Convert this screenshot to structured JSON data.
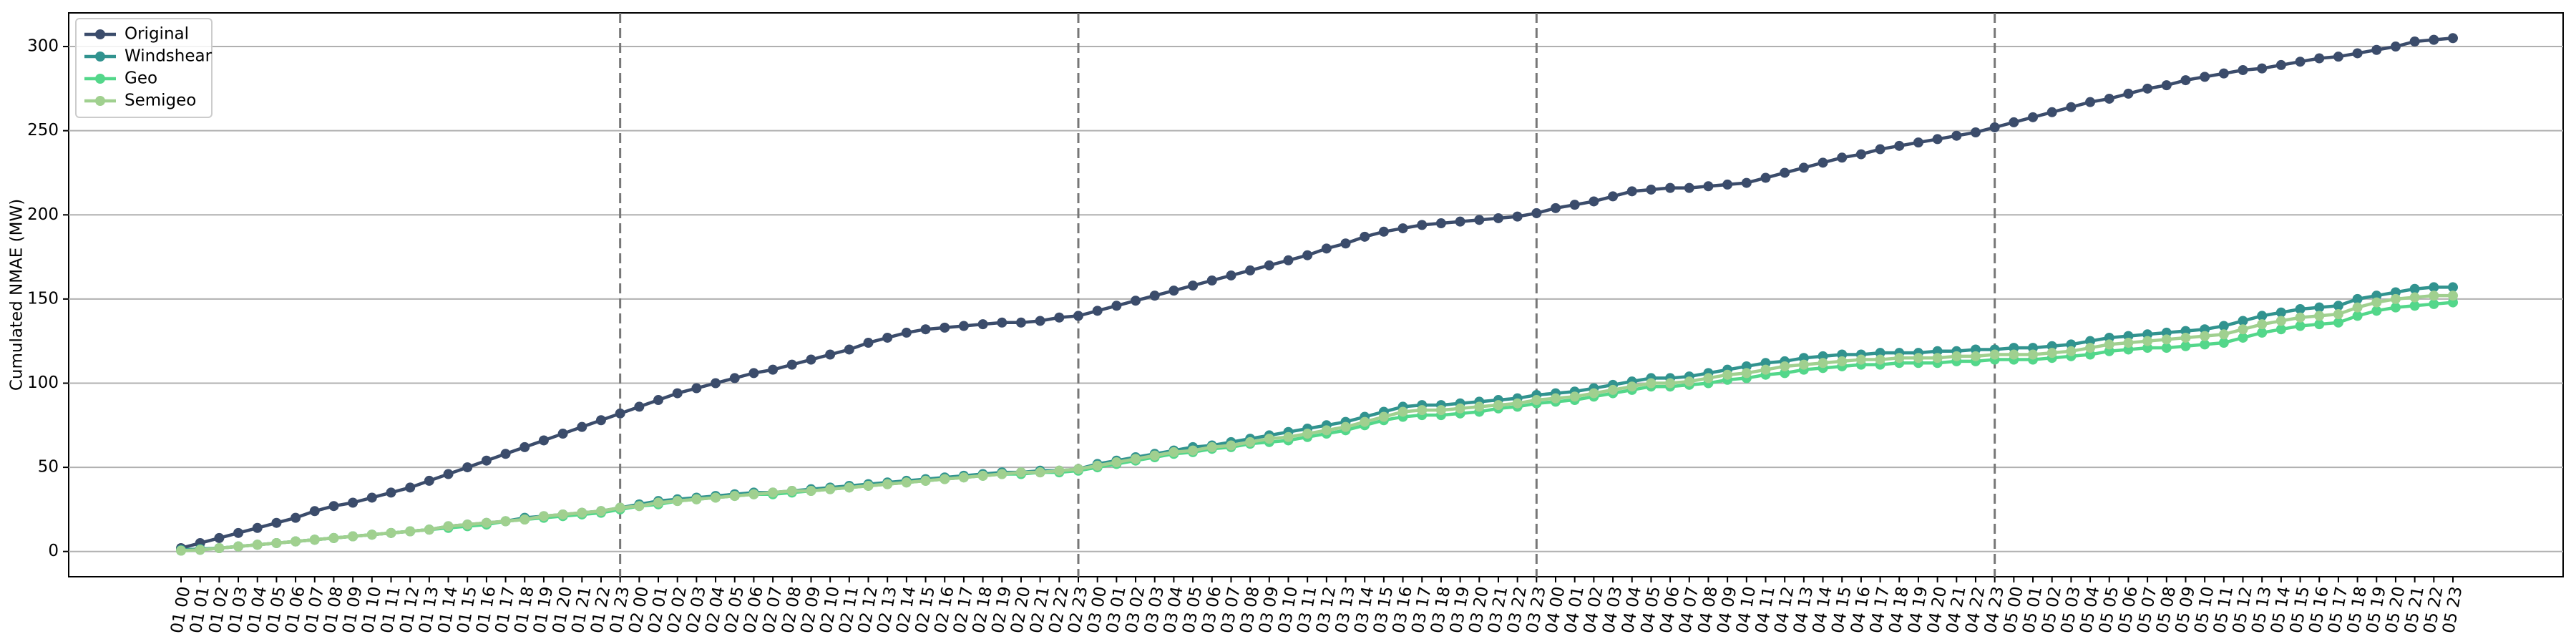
{
  "chart_data": {
    "type": "line",
    "ylabel": "Cumulated NMAE (MW)",
    "categories": [
      "01 00",
      "01 01",
      "01 02",
      "01 03",
      "01 04",
      "01 05",
      "01 06",
      "01 07",
      "01 08",
      "01 09",
      "01 10",
      "01 11",
      "01 12",
      "01 13",
      "01 14",
      "01 15",
      "01 16",
      "01 17",
      "01 18",
      "01 19",
      "01 20",
      "01 21",
      "01 22",
      "01 23",
      "02 00",
      "02 01",
      "02 02",
      "02 03",
      "02 04",
      "02 05",
      "02 06",
      "02 07",
      "02 08",
      "02 09",
      "02 10",
      "02 11",
      "02 12",
      "02 13",
      "02 14",
      "02 15",
      "02 16",
      "02 17",
      "02 18",
      "02 19",
      "02 20",
      "02 21",
      "02 22",
      "02 23",
      "03 00",
      "03 01",
      "03 02",
      "03 03",
      "03 04",
      "03 05",
      "03 06",
      "03 07",
      "03 08",
      "03 09",
      "03 10",
      "03 11",
      "03 12",
      "03 13",
      "03 14",
      "03 15",
      "03 16",
      "03 17",
      "03 18",
      "03 19",
      "03 20",
      "03 21",
      "03 22",
      "03 23",
      "04 00",
      "04 01",
      "04 02",
      "04 03",
      "04 04",
      "04 05",
      "04 06",
      "04 07",
      "04 08",
      "04 09",
      "04 10",
      "04 11",
      "04 12",
      "04 13",
      "04 14",
      "04 15",
      "04 16",
      "04 17",
      "04 18",
      "04 19",
      "04 20",
      "04 21",
      "04 22",
      "04 23",
      "05 00",
      "05 01",
      "05 02",
      "05 03",
      "05 04",
      "05 05",
      "05 06",
      "05 07",
      "05 08",
      "05 09",
      "05 10",
      "05 11",
      "05 12",
      "05 13",
      "05 14",
      "05 15",
      "05 16",
      "05 17",
      "05 18",
      "05 19",
      "05 20",
      "05 21",
      "05 22",
      "05 23"
    ],
    "series": [
      {
        "name": "Original",
        "color": "#3b4c6b",
        "values": [
          2,
          5,
          8,
          11,
          14,
          17,
          20,
          24,
          27,
          29,
          32,
          35,
          38,
          42,
          46,
          50,
          54,
          58,
          62,
          66,
          70,
          74,
          78,
          82,
          86,
          90,
          94,
          97,
          100,
          103,
          106,
          108,
          111,
          114,
          117,
          120,
          124,
          127,
          130,
          132,
          133,
          134,
          135,
          136,
          136,
          137,
          139,
          140,
          143,
          146,
          149,
          152,
          155,
          158,
          161,
          164,
          167,
          170,
          173,
          176,
          180,
          183,
          187,
          190,
          192,
          194,
          195,
          196,
          197,
          198,
          199,
          201,
          204,
          206,
          208,
          211,
          214,
          215,
          216,
          216,
          217,
          218,
          219,
          222,
          225,
          228,
          231,
          234,
          236,
          239,
          241,
          243,
          245,
          247,
          249,
          252,
          255,
          258,
          261,
          264,
          267,
          269,
          272,
          275,
          277,
          280,
          282,
          284,
          286,
          287,
          289,
          291,
          293,
          294,
          296,
          298,
          300,
          303,
          304,
          305
        ]
      },
      {
        "name": "Windshear",
        "color": "#31938f",
        "values": [
          1,
          1.5,
          2,
          3,
          4,
          5,
          6,
          7,
          8,
          9,
          10,
          11,
          12,
          13,
          15,
          16,
          17,
          18,
          20,
          21,
          22,
          23,
          24,
          26,
          28,
          30,
          31,
          32,
          33,
          34,
          35,
          35,
          36,
          37,
          38,
          39,
          40,
          41,
          42,
          43,
          44,
          45,
          46,
          47,
          47,
          48,
          48,
          49,
          52,
          54,
          56,
          58,
          60,
          62,
          63,
          65,
          67,
          69,
          71,
          73,
          75,
          77,
          80,
          83,
          86,
          87,
          87,
          88,
          89,
          90,
          91,
          93,
          94,
          95,
          97,
          99,
          101,
          103,
          103,
          104,
          106,
          108,
          110,
          112,
          113,
          115,
          116,
          117,
          117,
          118,
          118,
          118,
          119,
          119,
          120,
          120,
          121,
          121,
          122,
          123,
          125,
          127,
          128,
          129,
          130,
          131,
          132,
          134,
          137,
          140,
          142,
          144,
          145,
          146,
          150,
          152,
          154,
          156,
          157,
          157
        ]
      },
      {
        "name": "Geo",
        "color": "#53d78a",
        "values": [
          0.5,
          1,
          2,
          3,
          4,
          5,
          6,
          7,
          8,
          9,
          10,
          11,
          12,
          13,
          14,
          15,
          16,
          18,
          19,
          20,
          21,
          22,
          23,
          25,
          27,
          28,
          30,
          31,
          32,
          33,
          34,
          34,
          35,
          36,
          37,
          38,
          39,
          40,
          41,
          42,
          43,
          44,
          45,
          46,
          46,
          47,
          47,
          48,
          50,
          52,
          54,
          56,
          58,
          59,
          61,
          62,
          64,
          65,
          66,
          68,
          70,
          72,
          75,
          78,
          80,
          81,
          81,
          82,
          83,
          85,
          86,
          88,
          89,
          90,
          92,
          94,
          96,
          98,
          98,
          99,
          100,
          102,
          103,
          105,
          106,
          108,
          109,
          110,
          111,
          111,
          112,
          112,
          112,
          113,
          113,
          114,
          114,
          114,
          115,
          116,
          117,
          119,
          120,
          121,
          121,
          122,
          123,
          124,
          127,
          130,
          132,
          134,
          135,
          136,
          140,
          143,
          145,
          146,
          147,
          148
        ]
      },
      {
        "name": "Semigeo",
        "color": "#a0d08f",
        "values": [
          0.5,
          1,
          2,
          3,
          4,
          5,
          6,
          7,
          8,
          9,
          10,
          11,
          12,
          13,
          15,
          16,
          17,
          18,
          19,
          21,
          22,
          23,
          24,
          26,
          27,
          29,
          30,
          31,
          32,
          33,
          34,
          35,
          36,
          36,
          37,
          38,
          39,
          40,
          41,
          42,
          43,
          44,
          45,
          46,
          47,
          47,
          48,
          49,
          51,
          53,
          55,
          57,
          59,
          60,
          62,
          63,
          65,
          67,
          68,
          70,
          72,
          74,
          77,
          80,
          83,
          84,
          84,
          85,
          86,
          87,
          88,
          90,
          91,
          92,
          94,
          96,
          98,
          100,
          100,
          101,
          103,
          105,
          106,
          108,
          110,
          111,
          112,
          113,
          114,
          114,
          115,
          115,
          115,
          116,
          116,
          117,
          117,
          117,
          118,
          119,
          121,
          123,
          124,
          125,
          126,
          127,
          128,
          129,
          132,
          135,
          137,
          139,
          140,
          141,
          145,
          148,
          150,
          151,
          152,
          152
        ]
      }
    ],
    "vlines": [
      "01 23",
      "02 23",
      "03 23",
      "04 23"
    ],
    "ylim": [
      -15,
      320
    ],
    "yticks": [
      0,
      50,
      100,
      150,
      200,
      250,
      300
    ],
    "grid": true,
    "legend": "upper left"
  }
}
